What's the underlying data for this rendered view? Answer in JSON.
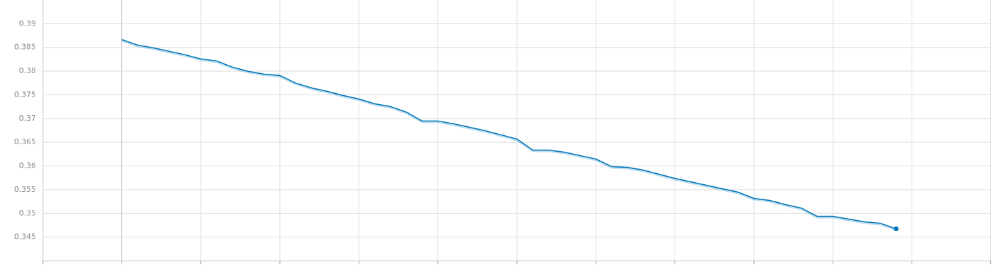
{
  "chart_data": {
    "type": "line",
    "x": [
      5,
      6,
      7,
      8,
      9,
      10,
      11,
      12,
      13,
      14,
      15,
      16,
      17,
      18,
      19,
      20,
      21,
      22,
      23,
      24,
      25,
      26,
      27,
      28,
      29,
      30,
      31,
      32,
      33,
      34,
      35,
      36,
      37,
      38,
      39,
      40,
      41,
      42,
      43,
      44,
      45,
      46,
      47,
      48,
      49,
      50,
      51,
      52,
      53,
      54
    ],
    "series": [
      {
        "color": "#0077bb",
        "values": [
          0.38665,
          0.38549,
          0.3849,
          0.38418,
          0.38345,
          0.38257,
          0.38214,
          0.38083,
          0.37995,
          0.37937,
          0.37908,
          0.37748,
          0.37646,
          0.37573,
          0.37486,
          0.37413,
          0.37311,
          0.37253,
          0.37136,
          0.36947,
          0.36947,
          0.36888,
          0.36816,
          0.36743,
          0.36655,
          0.36568,
          0.36335,
          0.36335,
          0.36291,
          0.36219,
          0.36146,
          0.35986,
          0.35971,
          0.35913,
          0.35825,
          0.35738,
          0.35665,
          0.35592,
          0.3552,
          0.35447,
          0.35316,
          0.35272,
          0.35185,
          0.35112,
          0.34937,
          0.34937,
          0.34879,
          0.34821,
          0.34791,
          0.34675
        ]
      }
    ],
    "xlim": [
      0,
      60
    ],
    "xticks": [
      0,
      5,
      10,
      15,
      20,
      25,
      30,
      35,
      40,
      45,
      50,
      55,
      60
    ],
    "ylim": [
      0.34,
      0.395
    ],
    "yticks": [
      0.345,
      0.35,
      0.355,
      0.36,
      0.365,
      0.37,
      0.375,
      0.38,
      0.385,
      0.39
    ],
    "grid": true
  }
}
